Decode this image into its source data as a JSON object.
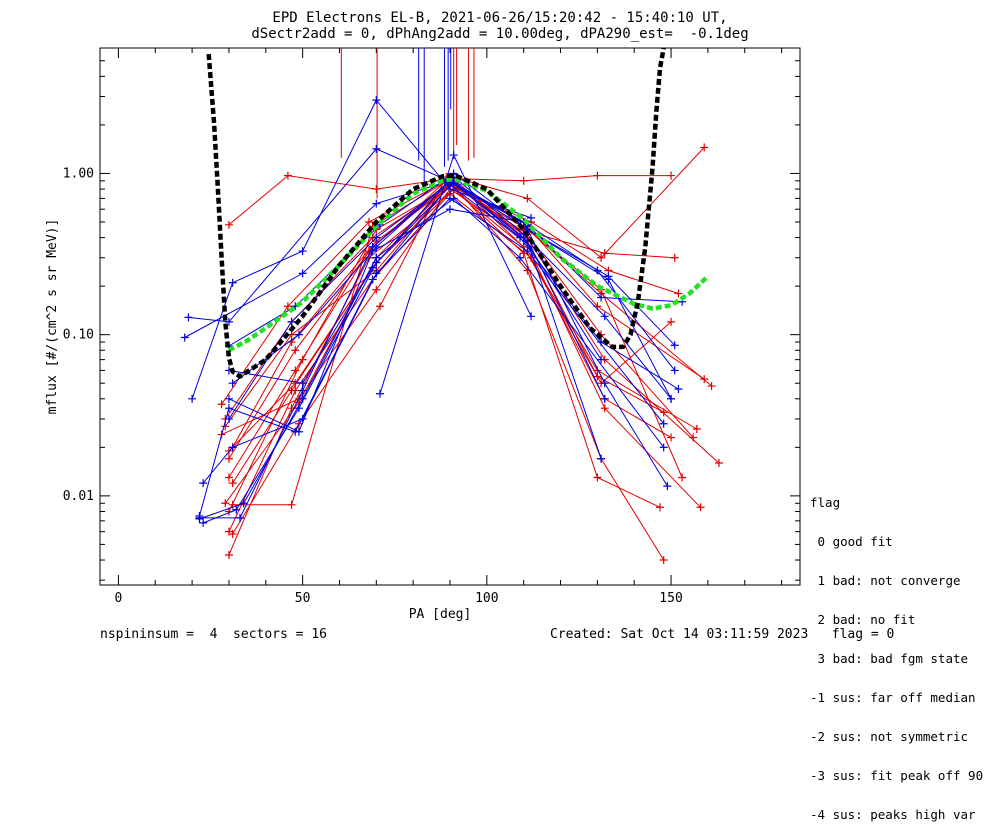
{
  "title": {
    "line1": "EPD Electrons EL-B, 2021-06-26/15:20:42 - 15:40:10 UT,",
    "line2": "dSectr2add = 0, dPhAng2add = 10.00deg, dPA290_est=  -0.1deg"
  },
  "chart_data": {
    "type": "line",
    "xlabel": "PA [deg]",
    "ylabel": "mflux [#/(cm^2 s sr MeV)]",
    "xlim": [
      -5,
      185
    ],
    "ylim": [
      0.0028,
      6.0
    ],
    "yscale": "log",
    "x_ticks": [
      0,
      50,
      100,
      150
    ],
    "y_ticks": [
      {
        "value": 0.01,
        "label": "0.01"
      },
      {
        "value": 0.1,
        "label": "0.10"
      },
      {
        "value": 1.0,
        "label": "1.00"
      }
    ],
    "colors": {
      "red": "#e00000",
      "blue": "#0000e0",
      "black_fit": "#000000",
      "green_fit": "#22e022"
    },
    "vertical_lines": [
      {
        "color": "red",
        "x": 60.5,
        "y_low": 1.25
      },
      {
        "color": "red",
        "x": 70.2,
        "y_low": 0.7
      },
      {
        "color": "blue",
        "x": 81.5,
        "y_low": 1.2
      },
      {
        "color": "blue",
        "x": 83.0,
        "y_low": 0.8
      },
      {
        "color": "blue",
        "x": 88.5,
        "y_low": 1.1
      },
      {
        "color": "blue",
        "x": 89.5,
        "y_low": 1.2
      },
      {
        "color": "blue",
        "x": 90.2,
        "y_low": 2.5
      },
      {
        "color": "red",
        "x": 91.0,
        "y_low": 1.3
      },
      {
        "color": "red",
        "x": 91.8,
        "y_low": 1.5
      },
      {
        "color": "red",
        "x": 95.0,
        "y_low": 1.2
      },
      {
        "color": "red",
        "x": 96.5,
        "y_low": 1.25
      }
    ],
    "red_series": [
      {
        "x": [
          30,
          46,
          70,
          90,
          110,
          130,
          150
        ],
        "y": [
          0.48,
          0.97,
          0.8,
          0.93,
          0.9,
          0.97,
          0.97
        ]
      },
      {
        "x": [
          31,
          47,
          69,
          91,
          111,
          131,
          159
        ],
        "y": [
          0.0088,
          0.0088,
          0.47,
          0.95,
          0.7,
          0.3,
          1.45
        ]
      },
      {
        "x": [
          28,
          46,
          68,
          89,
          109,
          132,
          151
        ],
        "y": [
          0.037,
          0.15,
          0.5,
          0.9,
          0.45,
          0.32,
          0.3
        ]
      },
      {
        "x": [
          29,
          47,
          70,
          90,
          112,
          133,
          152
        ],
        "y": [
          0.027,
          0.1,
          0.25,
          0.85,
          0.5,
          0.25,
          0.18
        ]
      },
      {
        "x": [
          30,
          48,
          69,
          91,
          110,
          131,
          150
        ],
        "y": [
          0.017,
          0.08,
          0.35,
          0.9,
          0.35,
          0.05,
          0.12
        ]
      },
      {
        "x": [
          28,
          49,
          70,
          90,
          111,
          130,
          148
        ],
        "y": [
          0.024,
          0.04,
          0.19,
          0.8,
          0.38,
          0.055,
          0.033
        ]
      },
      {
        "x": [
          30,
          48,
          69,
          90,
          112,
          132,
          150
        ],
        "y": [
          0.006,
          0.045,
          0.22,
          0.75,
          0.3,
          0.04,
          0.023
        ]
      },
      {
        "x": [
          30,
          47,
          68,
          91,
          110,
          130,
          147
        ],
        "y": [
          0.0043,
          0.035,
          0.3,
          0.8,
          0.32,
          0.013,
          0.0085
        ]
      },
      {
        "x": [
          31,
          49,
          71,
          89,
          111,
          131,
          148
        ],
        "y": [
          0.0058,
          0.028,
          0.15,
          0.95,
          0.25,
          0.017,
          0.004
        ]
      },
      {
        "x": [
          30,
          50,
          70,
          92,
          110,
          132,
          158
        ],
        "y": [
          0.008,
          0.07,
          0.45,
          0.88,
          0.4,
          0.035,
          0.0085
        ]
      },
      {
        "x": [
          29,
          47,
          69,
          90,
          111,
          131,
          161
        ],
        "y": [
          0.03,
          0.12,
          0.4,
          0.85,
          0.45,
          0.18,
          0.048
        ]
      },
      {
        "x": [
          30,
          48,
          70,
          91,
          110,
          130,
          157
        ],
        "y": [
          0.019,
          0.05,
          0.28,
          0.8,
          0.35,
          0.06,
          0.026
        ]
      },
      {
        "x": [
          31,
          47,
          69,
          90,
          111,
          132,
          163
        ],
        "y": [
          0.012,
          0.045,
          0.26,
          0.9,
          0.4,
          0.07,
          0.016
        ]
      },
      {
        "x": [
          29,
          49,
          70,
          90,
          110,
          130,
          159
        ],
        "y": [
          0.009,
          0.038,
          0.3,
          0.85,
          0.5,
          0.15,
          0.053
        ]
      },
      {
        "x": [
          30,
          48,
          68,
          89,
          111,
          131,
          156
        ],
        "y": [
          0.013,
          0.06,
          0.33,
          0.9,
          0.42,
          0.1,
          0.023
        ]
      },
      {
        "x": [
          31,
          47,
          70,
          91,
          110,
          131,
          153
        ],
        "y": [
          0.02,
          0.09,
          0.38,
          0.86,
          0.47,
          0.19,
          0.013
        ]
      }
    ],
    "blue_series": [
      {
        "x": [
          18,
          50,
          70,
          90,
          110,
          130,
          151
        ],
        "y": [
          0.096,
          0.24,
          0.65,
          0.9,
          0.5,
          0.25,
          0.06
        ]
      },
      {
        "x": [
          20,
          31,
          50,
          70,
          90,
          112
        ],
        "y": [
          0.04,
          0.21,
          0.33,
          2.85,
          0.8,
          0.53
        ]
      },
      {
        "x": [
          19,
          30,
          70,
          92,
          111,
          133,
          150
        ],
        "y": [
          0.128,
          0.12,
          1.42,
          0.85,
          0.45,
          0.22,
          0.04
        ]
      },
      {
        "x": [
          22,
          33,
          50,
          69,
          90,
          110,
          131
        ],
        "y": [
          0.0073,
          0.0073,
          0.045,
          0.35,
          0.9,
          0.4,
          0.07
        ]
      },
      {
        "x": [
          23,
          32,
          49,
          70,
          91,
          111,
          131
        ],
        "y": [
          0.0068,
          0.0082,
          0.035,
          0.28,
          0.88,
          0.38,
          0.017
        ]
      },
      {
        "x": [
          22,
          30,
          48,
          69,
          90,
          112,
          132
        ],
        "y": [
          0.0075,
          0.035,
          0.025,
          0.22,
          0.85,
          0.35,
          0.04
        ]
      },
      {
        "x": [
          23,
          31,
          50,
          70,
          90,
          111,
          148
        ],
        "y": [
          0.012,
          0.02,
          0.03,
          0.24,
          0.7,
          0.33,
          0.028
        ]
      },
      {
        "x": [
          22,
          34,
          50,
          70,
          91,
          109,
          148
        ],
        "y": [
          0.0072,
          0.009,
          0.04,
          0.3,
          0.7,
          0.3,
          0.02
        ]
      },
      {
        "x": [
          30,
          49,
          69,
          90,
          110,
          132,
          149
        ],
        "y": [
          0.04,
          0.025,
          0.33,
          0.6,
          0.5,
          0.05,
          0.0115
        ]
      },
      {
        "x": [
          71,
          91,
          112
        ],
        "y": [
          0.043,
          1.3,
          0.13
        ]
      },
      {
        "x": [
          30,
          48,
          71,
          91,
          111,
          133,
          151
        ],
        "y": [
          0.085,
          0.15,
          0.48,
          1.0,
          0.45,
          0.23,
          0.086
        ]
      },
      {
        "x": [
          30,
          50,
          69,
          90,
          109,
          131,
          152
        ],
        "y": [
          0.06,
          0.05,
          0.26,
          0.92,
          0.4,
          0.09,
          0.046
        ]
      },
      {
        "x": [
          31,
          49,
          70,
          91,
          110,
          132,
          150
        ],
        "y": [
          0.05,
          0.1,
          0.35,
          0.95,
          0.42,
          0.13,
          0.04
        ]
      },
      {
        "x": [
          30,
          47,
          70,
          90,
          111,
          131,
          153
        ],
        "y": [
          0.03,
          0.12,
          0.4,
          0.88,
          0.48,
          0.17,
          0.16
        ]
      }
    ],
    "fit_black": {
      "x": [
        24.5,
        26,
        27,
        28,
        29,
        30,
        31,
        33,
        40,
        50,
        60,
        70,
        80,
        88,
        90,
        92,
        100,
        110,
        120,
        128,
        134,
        137,
        139,
        141,
        143,
        145,
        146,
        147,
        148
      ],
      "y": [
        5.5,
        2.0,
        0.8,
        0.3,
        0.12,
        0.072,
        0.059,
        0.055,
        0.07,
        0.13,
        0.27,
        0.5,
        0.8,
        0.96,
        0.97,
        0.96,
        0.8,
        0.45,
        0.2,
        0.11,
        0.084,
        0.084,
        0.1,
        0.16,
        0.35,
        1.1,
        2.4,
        4.5,
        6.0
      ]
    },
    "fit_green": {
      "x": [
        30,
        35,
        40,
        50,
        60,
        70,
        80,
        88,
        90,
        92,
        100,
        110,
        120,
        130,
        140,
        145,
        150,
        155,
        160
      ],
      "y": [
        0.08,
        0.092,
        0.11,
        0.16,
        0.27,
        0.47,
        0.75,
        0.9,
        0.92,
        0.91,
        0.78,
        0.52,
        0.3,
        0.2,
        0.155,
        0.145,
        0.152,
        0.18,
        0.23
      ]
    }
  },
  "legend": {
    "title": "flag",
    "items": [
      " 0 good fit",
      " 1 bad: not converge",
      " 2 bad: no fit",
      " 3 bad: bad fgm state",
      "-1 sus: far off median",
      "-2 sus: not symmetric",
      "-3 sus: fit peak off 90",
      "-4 sus: peaks high var"
    ]
  },
  "footer": {
    "left": "nspininsum =  4  sectors = 16",
    "right": "Created: Sat Oct 14 03:11:59 2023   flag = 0"
  }
}
